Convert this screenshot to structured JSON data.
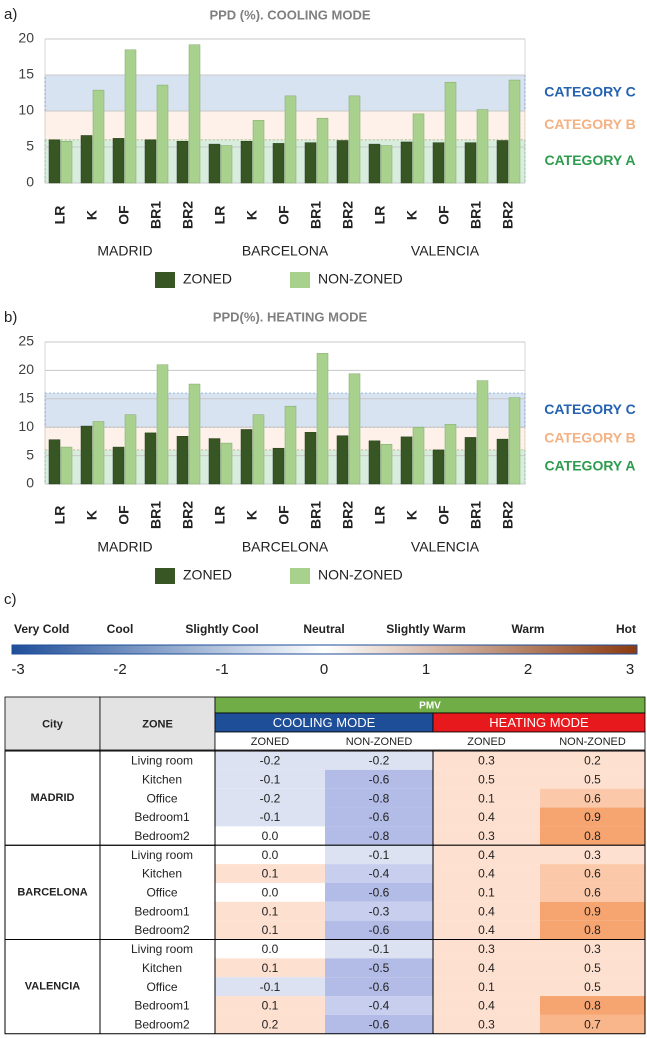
{
  "panel_labels": [
    "a)",
    "b)",
    "c)"
  ],
  "chart_data": [
    {
      "type": "bar",
      "title": "PPD (%). COOLING MODE",
      "categories": [
        "LR",
        "K",
        "OF",
        "BR1",
        "BR2",
        "LR",
        "K",
        "OF",
        "BR1",
        "BR2",
        "LR",
        "K",
        "OF",
        "BR1",
        "BR2"
      ],
      "category_groups": [
        "MADRID",
        "BARCELONA",
        "VALENCIA"
      ],
      "series": [
        {
          "name": "ZONED",
          "color": "#375623",
          "values": [
            6.0,
            6.6,
            6.2,
            6.0,
            5.8,
            5.4,
            5.8,
            5.5,
            5.6,
            5.9,
            5.4,
            5.7,
            5.6,
            5.6,
            5.9
          ]
        },
        {
          "name": "NON-ZONED",
          "color": "#a9d18e",
          "values": [
            5.8,
            12.9,
            18.5,
            13.6,
            19.2,
            5.2,
            8.7,
            12.1,
            9.0,
            12.1,
            5.2,
            9.6,
            14.0,
            10.2,
            14.3
          ]
        }
      ],
      "ylim": [
        0,
        20
      ],
      "yticks": [
        0,
        5,
        10,
        15,
        20
      ],
      "grid": true,
      "legend": "bottom",
      "bands": [
        {
          "label": "CATEGORY A",
          "range": [
            0,
            6
          ],
          "color": "#2e9b4e"
        },
        {
          "label": "CATEGORY B",
          "range": [
            6,
            10
          ],
          "color": "#f4b183"
        },
        {
          "label": "CATEGORY C",
          "range": [
            10,
            15
          ],
          "color": "#2563b0"
        }
      ]
    },
    {
      "type": "bar",
      "title": "PPD(%). HEATING MODE",
      "categories": [
        "LR",
        "K",
        "OF",
        "BR1",
        "BR2",
        "LR",
        "K",
        "OF",
        "BR1",
        "BR2",
        "LR",
        "K",
        "OF",
        "BR1",
        "BR2"
      ],
      "category_groups": [
        "MADRID",
        "BARCELONA",
        "VALENCIA"
      ],
      "series": [
        {
          "name": "ZONED",
          "color": "#375623",
          "values": [
            7.8,
            10.2,
            6.5,
            9.0,
            8.4,
            8.0,
            9.6,
            6.3,
            9.1,
            8.5,
            7.6,
            8.3,
            6.0,
            8.2,
            7.9
          ]
        },
        {
          "name": "NON-ZONED",
          "color": "#a9d18e",
          "values": [
            6.5,
            11.0,
            12.2,
            21.0,
            17.6,
            7.2,
            12.2,
            13.7,
            23.0,
            19.4,
            7.0,
            10.0,
            10.5,
            18.2,
            15.2
          ]
        }
      ],
      "ylim": [
        0,
        25
      ],
      "yticks": [
        0,
        5,
        10,
        15,
        20,
        25
      ],
      "grid": true,
      "legend": "bottom",
      "bands": [
        {
          "label": "CATEGORY A",
          "range": [
            0,
            6
          ],
          "color": "#2e9b4e"
        },
        {
          "label": "CATEGORY B",
          "range": [
            6,
            10
          ],
          "color": "#f4b183"
        },
        {
          "label": "CATEGORY C",
          "range": [
            10,
            16
          ],
          "color": "#2563b0"
        }
      ]
    }
  ],
  "pmv_scale": {
    "labels": [
      "Very Cold",
      "Cool",
      "Slightly Cool",
      "Neutral",
      "Slightly Warm",
      "Warm",
      "Hot"
    ],
    "xlim": [
      -3,
      3
    ],
    "xticks": [
      -3,
      -2,
      -1,
      0,
      1,
      2,
      3
    ]
  },
  "table": {
    "headers": {
      "city": "City",
      "zone": "ZONE",
      "pmv": "PMV",
      "cooling": "COOLING MODE",
      "heating": "HEATING MODE",
      "sub": [
        "ZONED",
        "NON-ZONED",
        "ZONED",
        "NON-ZONED"
      ]
    },
    "groups": [
      {
        "city": "MADRID",
        "rows": [
          [
            "Living room",
            "-0.2",
            "-0.2",
            "0.3",
            "0.2"
          ],
          [
            "Kitchen",
            "-0.1",
            "-0.6",
            "0.5",
            "0.5"
          ],
          [
            "Office",
            "-0.2",
            "-0.8",
            "0.1",
            "0.6"
          ],
          [
            "Bedroom1",
            "-0.1",
            "-0.6",
            "0.4",
            "0.9"
          ],
          [
            "Bedroom2",
            "0.0",
            "-0.8",
            "0.3",
            "0.8"
          ]
        ]
      },
      {
        "city": "BARCELONA",
        "rows": [
          [
            "Living room",
            "0.0",
            "-0.1",
            "0.4",
            "0.3"
          ],
          [
            "Kitchen",
            "0.1",
            "-0.4",
            "0.4",
            "0.6"
          ],
          [
            "Office",
            "0.0",
            "-0.6",
            "0.1",
            "0.6"
          ],
          [
            "Bedroom1",
            "0.1",
            "-0.3",
            "0.4",
            "0.9"
          ],
          [
            "Bedroom2",
            "0.1",
            "-0.6",
            "0.4",
            "0.8"
          ]
        ]
      },
      {
        "city": "VALENCIA",
        "rows": [
          [
            "Living room",
            "0.0",
            "-0.1",
            "0.3",
            "0.3"
          ],
          [
            "Kitchen",
            "0.1",
            "-0.5",
            "0.4",
            "0.5"
          ],
          [
            "Office",
            "-0.1",
            "-0.6",
            "0.1",
            "0.5"
          ],
          [
            "Bedroom1",
            "0.1",
            "-0.4",
            "0.4",
            "0.8"
          ],
          [
            "Bedroom2",
            "0.2",
            "-0.6",
            "0.3",
            "0.7"
          ]
        ]
      }
    ]
  }
}
